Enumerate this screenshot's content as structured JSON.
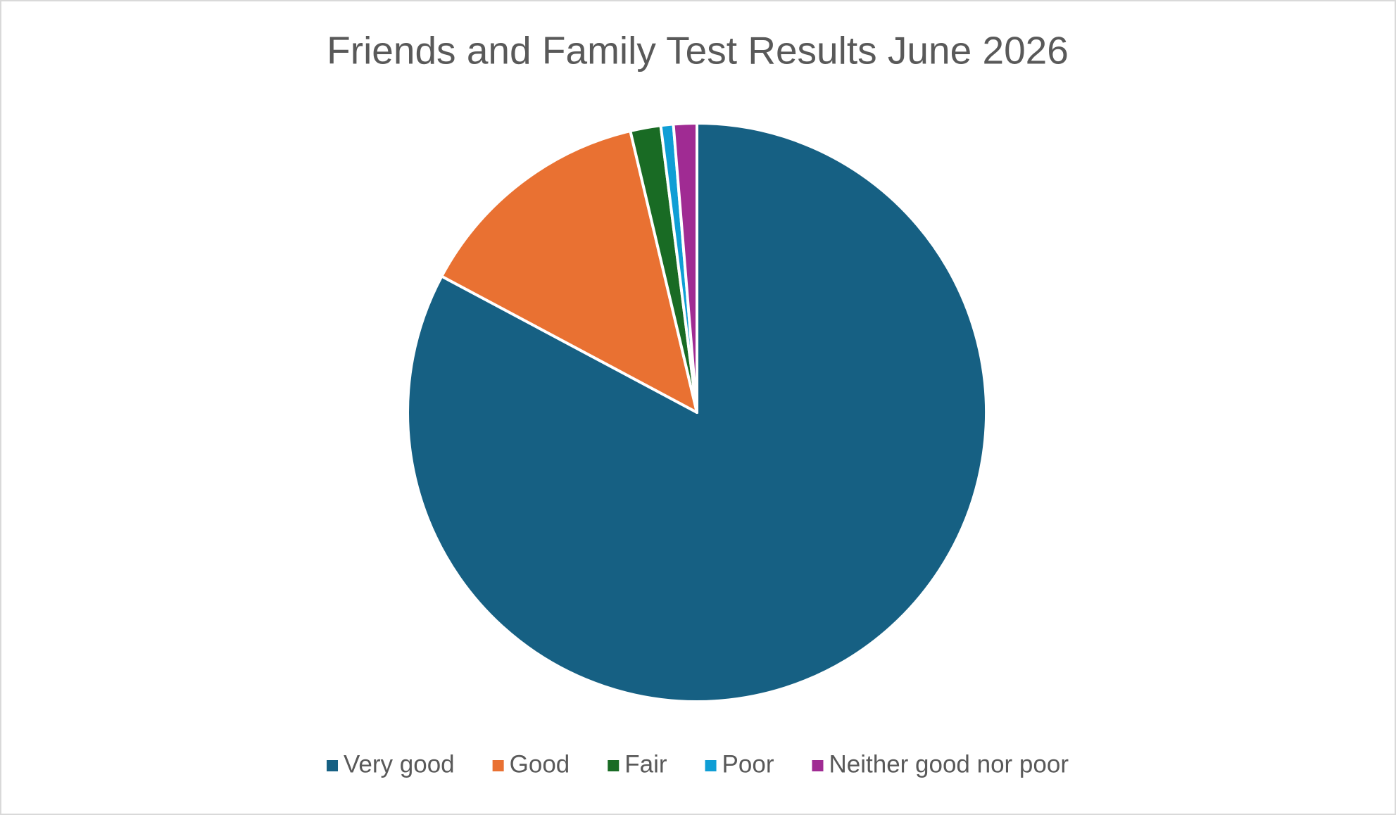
{
  "chart_data": {
    "type": "pie",
    "title": "Friends and Family Test Results June 2026",
    "categories": [
      "Very good",
      "Good",
      "Fair",
      "Poor",
      "Neither good nor poor"
    ],
    "values": [
      82.8,
      13.5,
      1.7,
      0.7,
      1.3
    ],
    "colors": [
      "#166083",
      "#e97132",
      "#196b24",
      "#0f9ed5",
      "#a02b93"
    ],
    "legend": "bottom"
  }
}
